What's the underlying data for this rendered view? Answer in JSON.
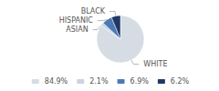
{
  "chart_data": {
    "type": "pie",
    "categories": [
      "WHITE",
      "ASIAN",
      "HISPANIC",
      "BLACK"
    ],
    "values": [
      84.9,
      2.1,
      6.9,
      6.2
    ],
    "value_labels": [
      "84.9%",
      "2.1%",
      "6.9%",
      "6.2%"
    ],
    "colors": [
      "#d6dce4",
      "#c9d4e0",
      "#4d7ab5",
      "#1f3864"
    ],
    "legend": "bottom"
  }
}
